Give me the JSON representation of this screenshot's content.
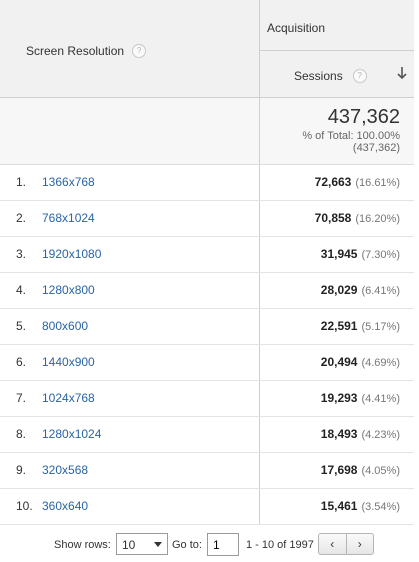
{
  "header": {
    "dimension_label": "Screen Resolution",
    "group_label": "Acquisition",
    "metric_label": "Sessions",
    "help_glyph": "?",
    "sort_icon": "sort-descending-arrow"
  },
  "totals": {
    "sessions": "437,362",
    "percent_line": "% of Total: 100.00%",
    "total_line": "(437,362)"
  },
  "rows": [
    {
      "num": "1.",
      "resolution": "1366x768",
      "sessions": "72,663",
      "pct": "(16.61%)"
    },
    {
      "num": "2.",
      "resolution": "768x1024",
      "sessions": "70,858",
      "pct": "(16.20%)"
    },
    {
      "num": "3.",
      "resolution": "1920x1080",
      "sessions": "31,945",
      "pct": "(7.30%)"
    },
    {
      "num": "4.",
      "resolution": "1280x800",
      "sessions": "28,029",
      "pct": "(6.41%)"
    },
    {
      "num": "5.",
      "resolution": "800x600",
      "sessions": "22,591",
      "pct": "(5.17%)"
    },
    {
      "num": "6.",
      "resolution": "1440x900",
      "sessions": "20,494",
      "pct": "(4.69%)"
    },
    {
      "num": "7.",
      "resolution": "1024x768",
      "sessions": "19,293",
      "pct": "(4.41%)"
    },
    {
      "num": "8.",
      "resolution": "1280x1024",
      "sessions": "18,493",
      "pct": "(4.23%)"
    },
    {
      "num": "9.",
      "resolution": "320x568",
      "sessions": "17,698",
      "pct": "(4.05%)"
    },
    {
      "num": "10.",
      "resolution": "360x640",
      "sessions": "15,461",
      "pct": "(3.54%)"
    }
  ],
  "footer": {
    "show_rows_label": "Show rows:",
    "show_rows_value": "10",
    "goto_label": "Go to:",
    "goto_value": "1",
    "range_text": "1 - 10 of 1997",
    "prev_glyph": "‹",
    "next_glyph": "›"
  }
}
